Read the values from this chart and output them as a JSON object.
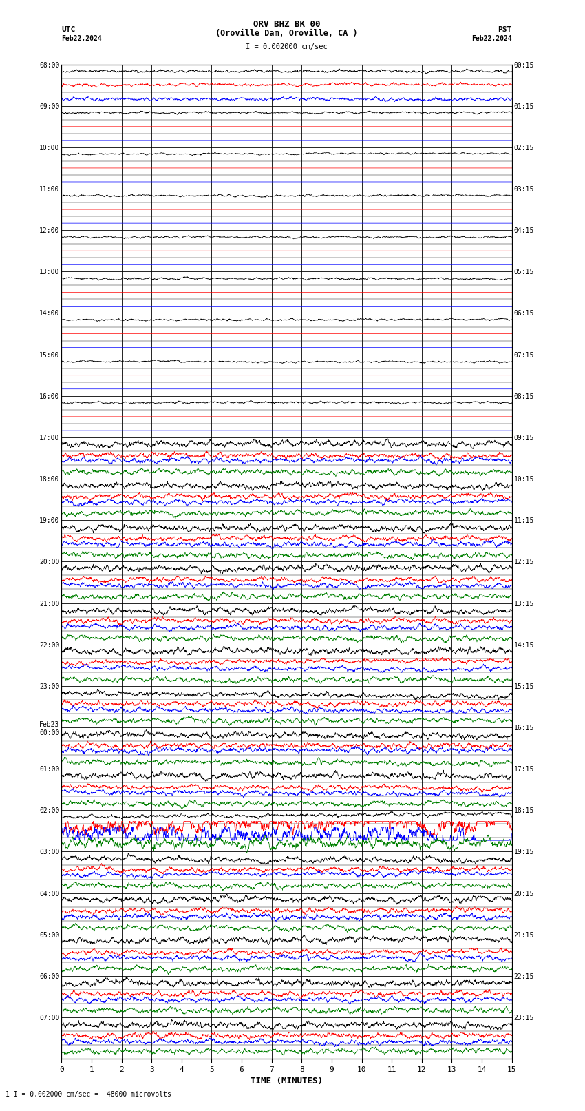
{
  "title_line1": "ORV BHZ BK 00",
  "title_line2": "(Oroville Dam, Oroville, CA )",
  "scale_label": "I = 0.002000 cm/sec",
  "utc_header1": "UTC",
  "utc_header2": "Feb22,2024",
  "pst_header1": "PST",
  "pst_header2": "Feb22,2024",
  "xlabel": "TIME (MINUTES)",
  "footer": "1 I = 0.002000 cm/sec =  48000 microvolts",
  "xmin": 0,
  "xmax": 15,
  "bg_color": "#ffffff",
  "hour_blocks": [
    {
      "utc": "08:00",
      "pst": "00:15",
      "n_traces": 3,
      "active": true,
      "event": false
    },
    {
      "utc": "09:00",
      "pst": "01:15",
      "n_traces": 3,
      "active": false,
      "event": false
    },
    {
      "utc": "10:00",
      "pst": "02:15",
      "n_traces": 3,
      "active": false,
      "event": false
    },
    {
      "utc": "11:00",
      "pst": "03:15",
      "n_traces": 3,
      "active": false,
      "event": false
    },
    {
      "utc": "12:00",
      "pst": "04:15",
      "n_traces": 3,
      "active": false,
      "event": false
    },
    {
      "utc": "13:00",
      "pst": "05:15",
      "n_traces": 3,
      "active": false,
      "event": false
    },
    {
      "utc": "14:00",
      "pst": "06:15",
      "n_traces": 3,
      "active": false,
      "event": false
    },
    {
      "utc": "15:00",
      "pst": "07:15",
      "n_traces": 3,
      "active": false,
      "event": false
    },
    {
      "utc": "16:00",
      "pst": "08:15",
      "n_traces": 3,
      "active": false,
      "event": false
    },
    {
      "utc": "17:00",
      "pst": "09:15",
      "n_traces": 4,
      "active": true,
      "event": false
    },
    {
      "utc": "18:00",
      "pst": "10:15",
      "n_traces": 4,
      "active": true,
      "event": false
    },
    {
      "utc": "19:00",
      "pst": "11:15",
      "n_traces": 4,
      "active": true,
      "event": false
    },
    {
      "utc": "20:00",
      "pst": "12:15",
      "n_traces": 4,
      "active": true,
      "event": false
    },
    {
      "utc": "21:00",
      "pst": "13:15",
      "n_traces": 4,
      "active": true,
      "event": false
    },
    {
      "utc": "22:00",
      "pst": "14:15",
      "n_traces": 4,
      "active": true,
      "event": false
    },
    {
      "utc": "23:00",
      "pst": "15:15",
      "n_traces": 4,
      "active": true,
      "event": false
    },
    {
      "utc": "Feb23\n00:00",
      "pst": "16:15",
      "n_traces": 4,
      "active": true,
      "event": false
    },
    {
      "utc": "01:00",
      "pst": "17:15",
      "n_traces": 4,
      "active": true,
      "event": false
    },
    {
      "utc": "02:00",
      "pst": "18:15",
      "n_traces": 4,
      "active": true,
      "event": true
    },
    {
      "utc": "03:00",
      "pst": "19:15",
      "n_traces": 4,
      "active": true,
      "event": false
    },
    {
      "utc": "04:00",
      "pst": "20:15",
      "n_traces": 4,
      "active": true,
      "event": false
    },
    {
      "utc": "05:00",
      "pst": "21:15",
      "n_traces": 4,
      "active": true,
      "event": false
    },
    {
      "utc": "06:00",
      "pst": "22:15",
      "n_traces": 4,
      "active": true,
      "event": false
    },
    {
      "utc": "07:00",
      "pst": "23:15",
      "n_traces": 4,
      "active": true,
      "event": false
    }
  ],
  "sub_rows_per_block": 3,
  "trace_lw": 0.5,
  "minor_grid_lw": 0.3,
  "major_grid_lw": 0.6
}
